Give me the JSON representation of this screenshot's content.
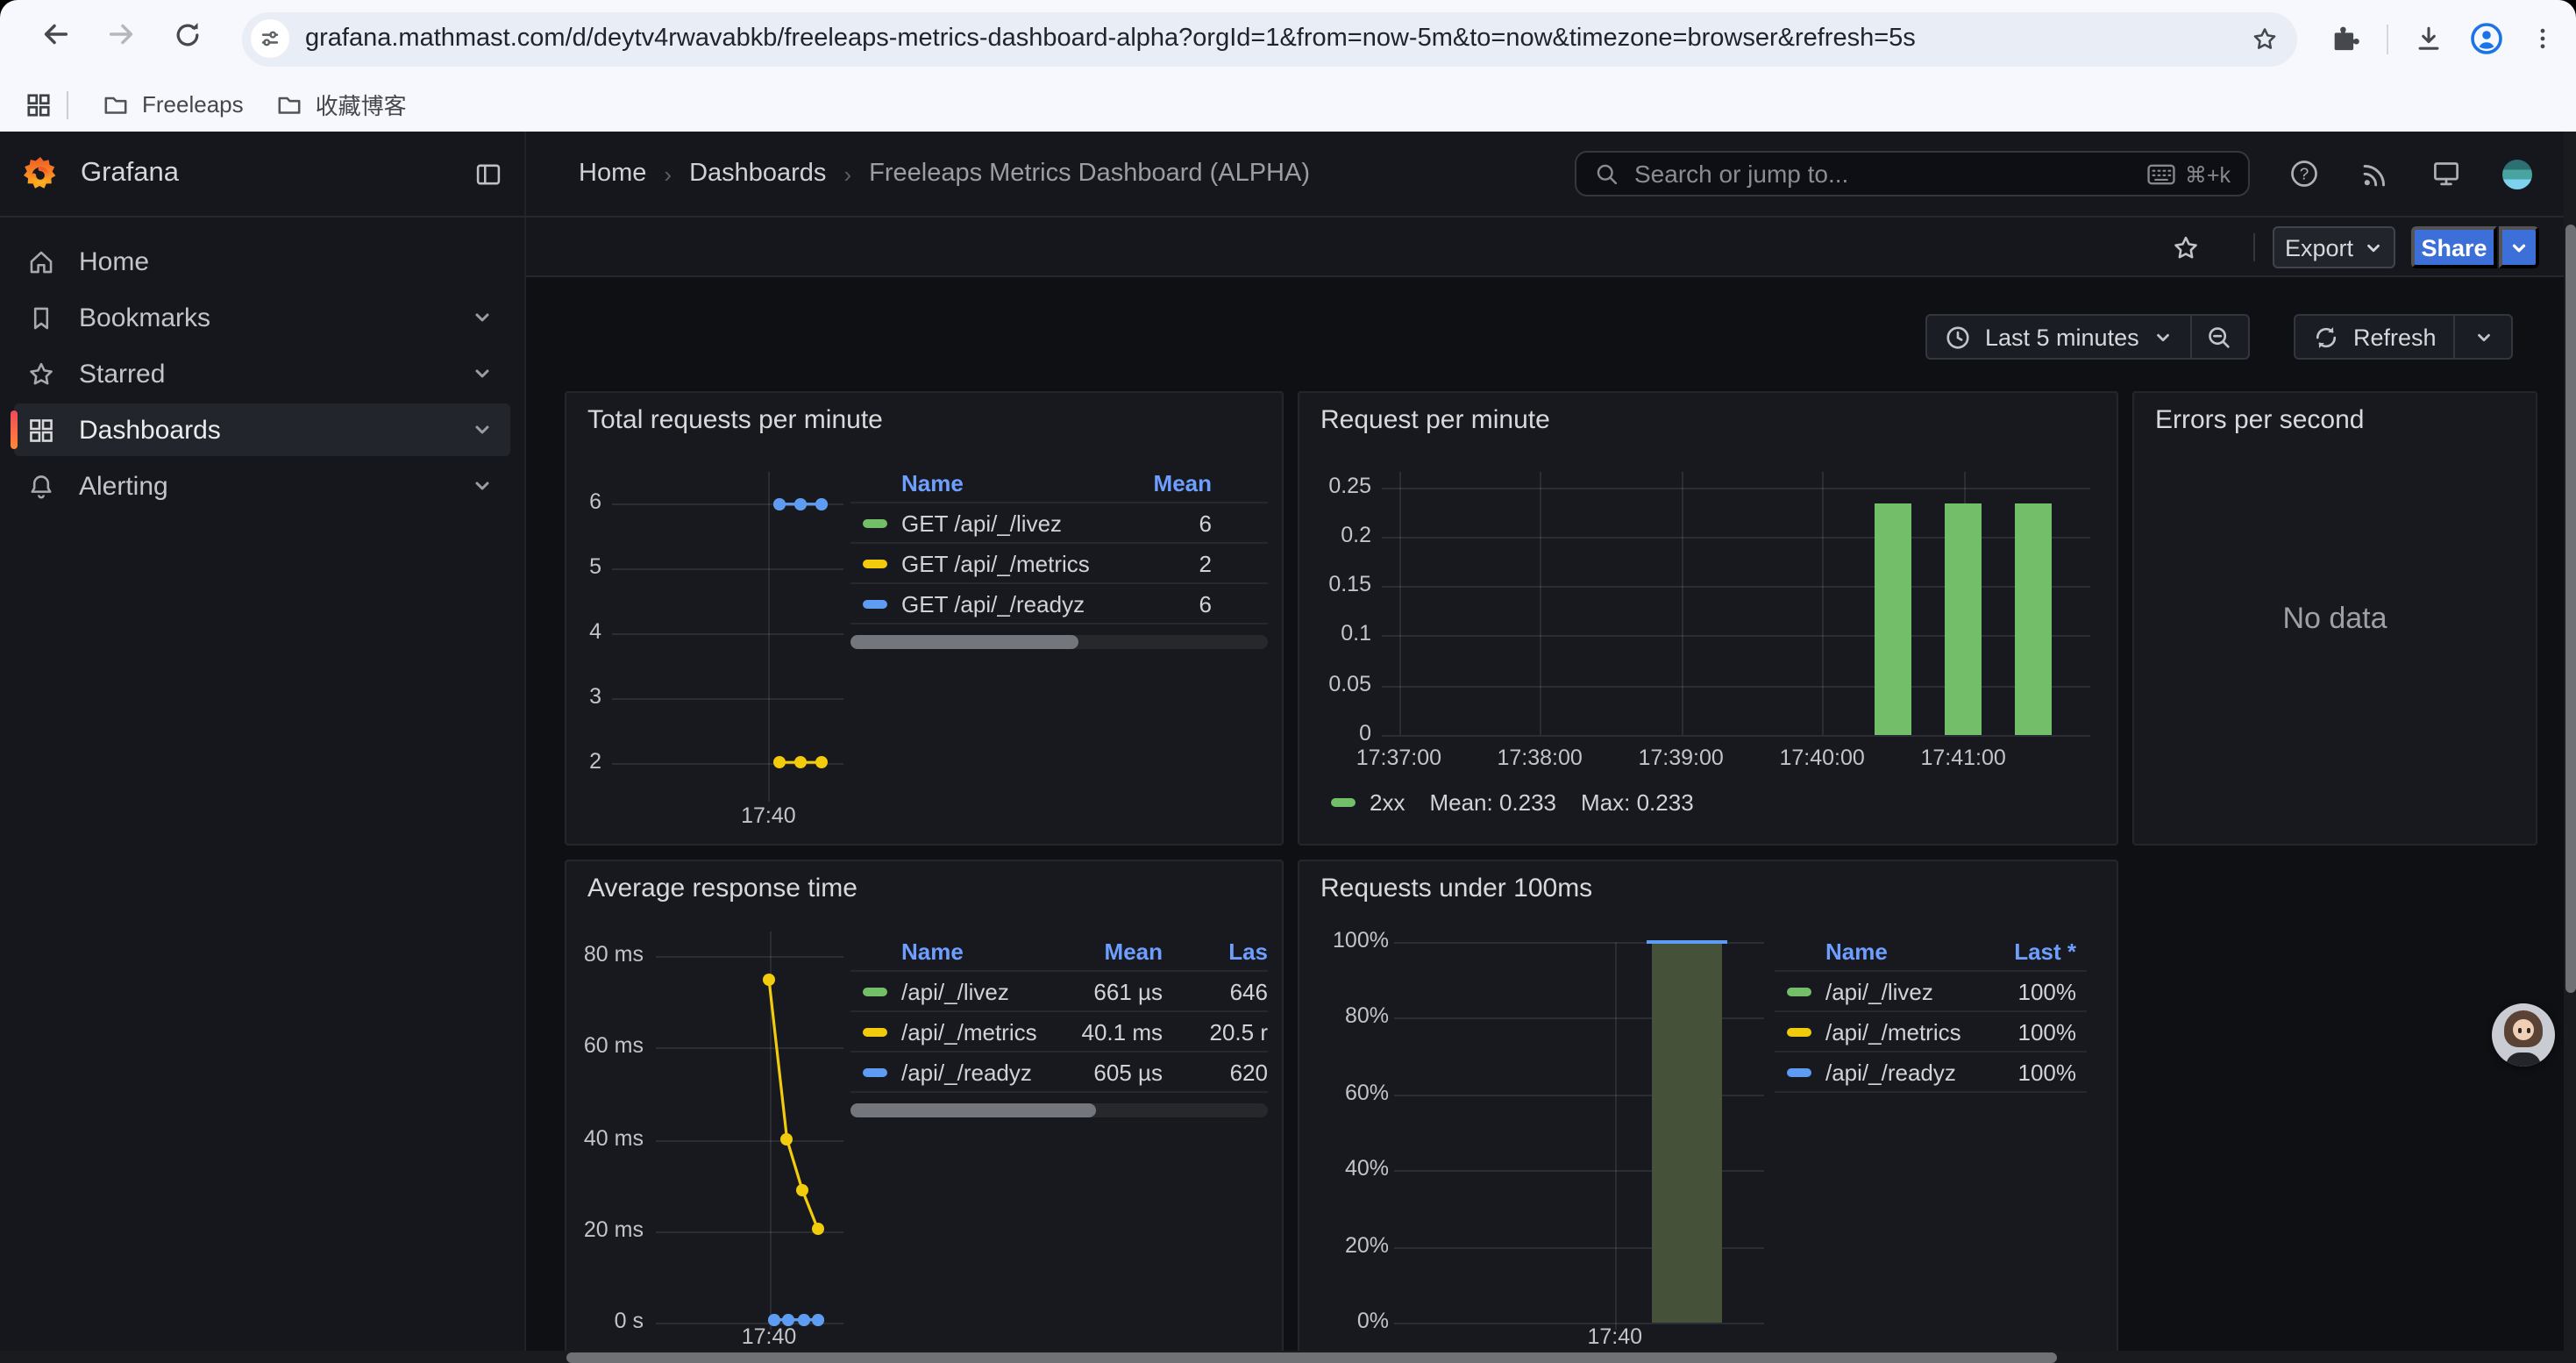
{
  "browser": {
    "url": "grafana.mathmast.com/d/deytv4rwavabkb/freeleaps-metrics-dashboard-alpha?orgId=1&from=now-5m&to=now&timezone=browser&refresh=5s",
    "bookmarks": [
      {
        "label": "Freeleaps"
      },
      {
        "label": "收藏博客"
      }
    ]
  },
  "nav": {
    "brand": "Grafana",
    "breadcrumb": [
      "Home",
      "Dashboards",
      "Freeleaps Metrics Dashboard (ALPHA)"
    ],
    "search_placeholder": "Search or jump to...",
    "search_shortcut": "⌘+k"
  },
  "sidebar": {
    "items": [
      {
        "label": "Home"
      },
      {
        "label": "Bookmarks"
      },
      {
        "label": "Starred"
      },
      {
        "label": "Dashboards"
      },
      {
        "label": "Alerting"
      }
    ]
  },
  "toolbar": {
    "export_label": "Export",
    "share_label": "Share",
    "time_range": "Last 5 minutes",
    "refresh_label": "Refresh"
  },
  "panels": {
    "p1": {
      "title": "Total requests per minute",
      "legend": {
        "headers": [
          "Name",
          "Mean"
        ],
        "rows": [
          {
            "color": "#73bf69",
            "name": "GET /api/_/livez",
            "mean": "6"
          },
          {
            "color": "#f2cc0c",
            "name": "GET /api/_/metrics",
            "mean": "2"
          },
          {
            "color": "#5e9bf2",
            "name": "GET /api/_/readyz",
            "mean": "6"
          }
        ]
      }
    },
    "p2": {
      "title": "Request per minute",
      "legend": {
        "color": "#73bf69",
        "series": "2xx",
        "mean_text": "Mean: 0.233",
        "max_text": "Max: 0.233"
      }
    },
    "p3": {
      "title": "Errors per second",
      "no_data": "No data"
    },
    "p4": {
      "title": "Average response time",
      "legend": {
        "headers": [
          "Name",
          "Mean",
          "Las"
        ],
        "rows": [
          {
            "color": "#73bf69",
            "name": "/api/_/livez",
            "mean": "661 µs",
            "last": "646"
          },
          {
            "color": "#f2cc0c",
            "name": "/api/_/metrics",
            "mean": "40.1 ms",
            "last": "20.5 r"
          },
          {
            "color": "#5e9bf2",
            "name": "/api/_/readyz",
            "mean": "605 µs",
            "last": "620"
          }
        ]
      }
    },
    "p5": {
      "title": "Requests under 100ms",
      "legend": {
        "headers": [
          "Name",
          "Last *"
        ],
        "rows": [
          {
            "color": "#73bf69",
            "name": "/api/_/livez",
            "last": "100%"
          },
          {
            "color": "#f2cc0c",
            "name": "/api/_/metrics",
            "last": "100%"
          },
          {
            "color": "#5e9bf2",
            "name": "/api/_/readyz",
            "last": "100%"
          }
        ]
      }
    }
  },
  "chart_data": [
    {
      "panel": "p1",
      "title": "Total requests per minute",
      "type": "line",
      "x_unit": "minutes after 17:35",
      "xlim": [
        0,
        7.4
      ],
      "x_ticks": [
        {
          "v": 5,
          "label": "17:40"
        }
      ],
      "ylim": [
        1.5,
        6.5
      ],
      "y_ticks": [
        {
          "v": 2,
          "label": "2"
        },
        {
          "v": 3,
          "label": "3"
        },
        {
          "v": 4,
          "label": "4"
        },
        {
          "v": 5,
          "label": "5"
        },
        {
          "v": 6,
          "label": "6"
        }
      ],
      "series": [
        {
          "name": "GET /api/_/livez",
          "color": "#73bf69",
          "type": "line",
          "points": [
            [
              5.33,
              6
            ],
            [
              6.0,
              6
            ],
            [
              6.67,
              6
            ]
          ]
        },
        {
          "name": "GET /api/_/metrics",
          "color": "#f2cc0c",
          "type": "line",
          "points": [
            [
              5.33,
              2
            ],
            [
              6.0,
              2
            ],
            [
              6.67,
              2
            ]
          ]
        },
        {
          "name": "GET /api/_/readyz",
          "color": "#5e9bf2",
          "type": "line",
          "points": [
            [
              5.33,
              6
            ],
            [
              6.0,
              6
            ],
            [
              6.67,
              6
            ]
          ]
        }
      ]
    },
    {
      "panel": "p2",
      "title": "Request per minute",
      "type": "bar",
      "x_unit": "minutes after 17:36",
      "xlim": [
        0.88,
        5.9
      ],
      "x_ticks": [
        {
          "v": 1,
          "label": "17:37:00"
        },
        {
          "v": 2,
          "label": "17:38:00"
        },
        {
          "v": 3,
          "label": "17:39:00"
        },
        {
          "v": 4,
          "label": "17:40:00"
        },
        {
          "v": 5,
          "label": "17:41:00"
        }
      ],
      "ylim": [
        0,
        0.265
      ],
      "y_ticks": [
        {
          "v": 0,
          "label": "0"
        },
        {
          "v": 0.05,
          "label": "0.05"
        },
        {
          "v": 0.1,
          "label": "0.1"
        },
        {
          "v": 0.15,
          "label": "0.15"
        },
        {
          "v": 0.2,
          "label": "0.2"
        },
        {
          "v": 0.25,
          "label": "0.25"
        }
      ],
      "series": [
        {
          "name": "2xx",
          "color": "#73bf69",
          "type": "bars",
          "bar_width": 0.26,
          "mean": 0.233,
          "max": 0.233,
          "points": [
            [
              4.5,
              0.233
            ],
            [
              5.0,
              0.233
            ],
            [
              5.5,
              0.233
            ]
          ]
        }
      ]
    },
    {
      "panel": "p3",
      "title": "Errors per second",
      "type": "none",
      "message": "No data"
    },
    {
      "panel": "p4",
      "title": "Average response time",
      "type": "line",
      "x_unit": "minutes after 17:35",
      "xlim": [
        0.6,
        7.9
      ],
      "x_ticks": [
        {
          "v": 5,
          "label": "17:40"
        }
      ],
      "ylim": [
        0,
        83.5
      ],
      "y_unit": "ms",
      "y_ticks": [
        {
          "v": 0,
          "label": "0 s"
        },
        {
          "v": 20,
          "label": "20 ms"
        },
        {
          "v": 40,
          "label": "40 ms"
        },
        {
          "v": 60,
          "label": "60 ms"
        },
        {
          "v": 80,
          "label": "80 ms"
        }
      ],
      "series": [
        {
          "name": "/api/_/livez",
          "color": "#73bf69",
          "type": "line",
          "points": [
            [
              5.2,
              0.66
            ],
            [
              5.77,
              0.65
            ],
            [
              6.33,
              0.65
            ],
            [
              6.9,
              0.65
            ]
          ]
        },
        {
          "name": "/api/_/metrics",
          "color": "#f2cc0c",
          "type": "line",
          "points": [
            [
              5.0,
              75
            ],
            [
              5.7,
              40
            ],
            [
              6.3,
              29
            ],
            [
              6.9,
              20.5
            ]
          ]
        },
        {
          "name": "/api/_/readyz",
          "color": "#5e9bf2",
          "type": "line",
          "points": [
            [
              5.2,
              0.62
            ],
            [
              5.77,
              0.61
            ],
            [
              6.33,
              0.61
            ],
            [
              6.9,
              0.62
            ]
          ]
        }
      ]
    },
    {
      "panel": "p5",
      "title": "Requests under 100ms",
      "type": "area-bar",
      "x_unit": "minutes after 17:35",
      "xlim": [
        3.55,
        5.98
      ],
      "x_ticks": [
        {
          "v": 5,
          "label": "17:40"
        }
      ],
      "ylim": [
        0,
        100
      ],
      "y_ticks": [
        {
          "v": 0,
          "label": "0%"
        },
        {
          "v": 20,
          "label": "20%"
        },
        {
          "v": 40,
          "label": "40%"
        },
        {
          "v": 60,
          "label": "60%"
        },
        {
          "v": 80,
          "label": "80%"
        },
        {
          "v": 100,
          "label": "100%"
        }
      ],
      "series": [
        {
          "name": "/api/_/readyz",
          "color": "#5e9bf2",
          "fill": "#455138",
          "type": "area-bar",
          "bar_width": 0.46,
          "points": [
            [
              5.47,
              100
            ]
          ]
        }
      ]
    }
  ],
  "colors": {
    "accent_orange": "#ff8833",
    "link_blue": "#6e9fff",
    "share_blue": "#3d6fd8",
    "green": "#73bf69",
    "yellow": "#f2cc0c",
    "blue": "#5e9bf2"
  }
}
